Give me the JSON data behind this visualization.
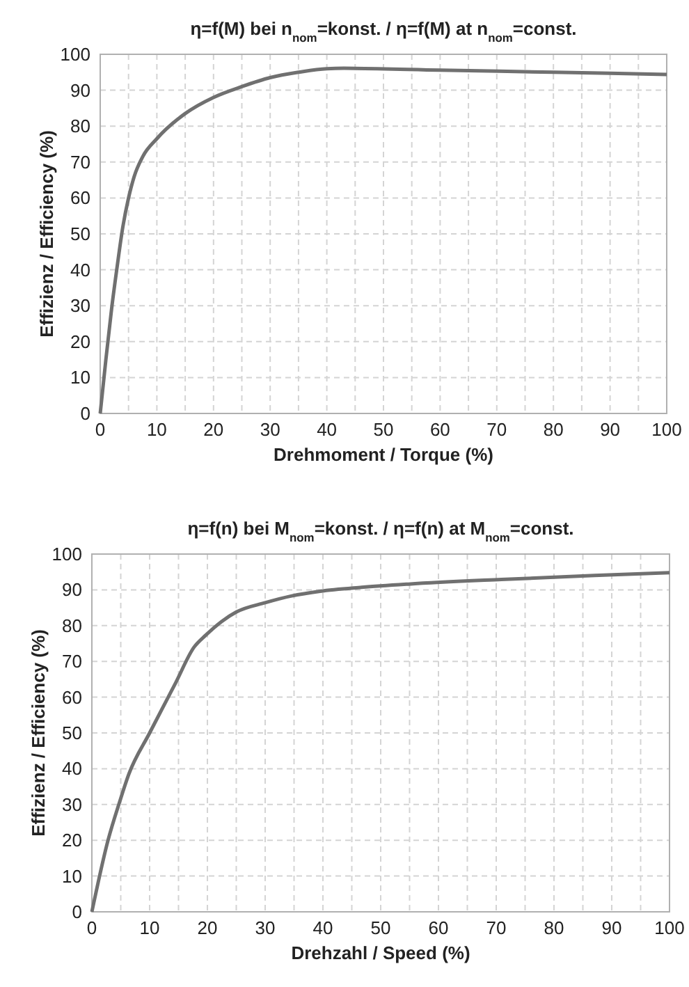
{
  "chart_data": [
    {
      "type": "line",
      "title": "η=f(M) bei n$_{nom}$=konst. / η=f(M) at n$_{nom}$=const.",
      "xlabel": "Drehmoment / Torque (%)",
      "ylabel": "Effizienz / Efficiency (%)",
      "x": [
        0,
        1,
        2,
        3,
        4,
        5,
        6,
        7.5,
        10,
        15,
        20,
        25,
        30,
        35,
        40,
        43,
        60,
        80,
        100
      ],
      "series": [
        {
          "color": "#707070",
          "values": [
            0,
            15,
            29,
            41,
            52,
            60,
            66,
            71.5,
            76.5,
            83.5,
            88,
            91,
            93.5,
            95,
            96,
            96.1,
            95.6,
            95,
            94.4
          ]
        }
      ],
      "xlim": [
        0,
        100
      ],
      "ylim": [
        0,
        100
      ],
      "xticks": [
        0,
        {
          "value": 5,
          "label": null
        },
        10,
        {
          "value": 15,
          "label": null
        },
        20,
        {
          "value": 25,
          "label": null
        },
        30,
        {
          "value": 35,
          "label": null
        },
        40,
        {
          "value": 45,
          "label": null
        },
        50,
        {
          "value": 55,
          "label": null
        },
        60,
        {
          "value": 65,
          "label": null
        },
        70,
        {
          "value": 75,
          "label": null
        },
        80,
        {
          "value": 85,
          "label": null
        },
        90,
        {
          "value": 95,
          "label": null
        },
        100
      ],
      "yticks": [
        0,
        10,
        20,
        30,
        40,
        50,
        60,
        70,
        80,
        90,
        100
      ],
      "grid": true,
      "marker": "none",
      "line_style": "solid"
    },
    {
      "type": "line",
      "title": "η=f(n) bei M$_{nom}$=konst. / η=f(n) at M$_{nom}$=const.",
      "xlabel": "Drehzahl / Speed (%)",
      "ylabel": "Effizienz / Efficiency (%)",
      "x": [
        0,
        2.8,
        4.8,
        6.4,
        10,
        14.5,
        17.7,
        19.7,
        22.5,
        25,
        30,
        34.6,
        39.5,
        46.7,
        54.8,
        70.9,
        87,
        100
      ],
      "series": [
        {
          "color": "#707070",
          "values": [
            0,
            20,
            30.7,
            38.5,
            50,
            64,
            74,
            77.3,
            81.2,
            83.8,
            86.4,
            88.3,
            89.6,
            90.7,
            91.6,
            92.9,
            94,
            94.8
          ]
        }
      ],
      "xlim": [
        0,
        100
      ],
      "ylim": [
        0,
        100
      ],
      "xticks": [
        0,
        {
          "value": 5,
          "label": null
        },
        10,
        {
          "value": 15,
          "label": null
        },
        20,
        {
          "value": 25,
          "label": null
        },
        30,
        {
          "value": 35,
          "label": null
        },
        40,
        {
          "value": 45,
          "label": null
        },
        50,
        {
          "value": 55,
          "label": null
        },
        60,
        {
          "value": 65,
          "label": null
        },
        70,
        {
          "value": 75,
          "label": null
        },
        80,
        {
          "value": 85,
          "label": null
        },
        90,
        {
          "value": 95,
          "label": null
        },
        100
      ],
      "yticks": [
        0,
        10,
        20,
        30,
        40,
        50,
        60,
        70,
        80,
        90,
        100
      ],
      "grid": true,
      "marker": "none",
      "line_style": "solid"
    }
  ]
}
